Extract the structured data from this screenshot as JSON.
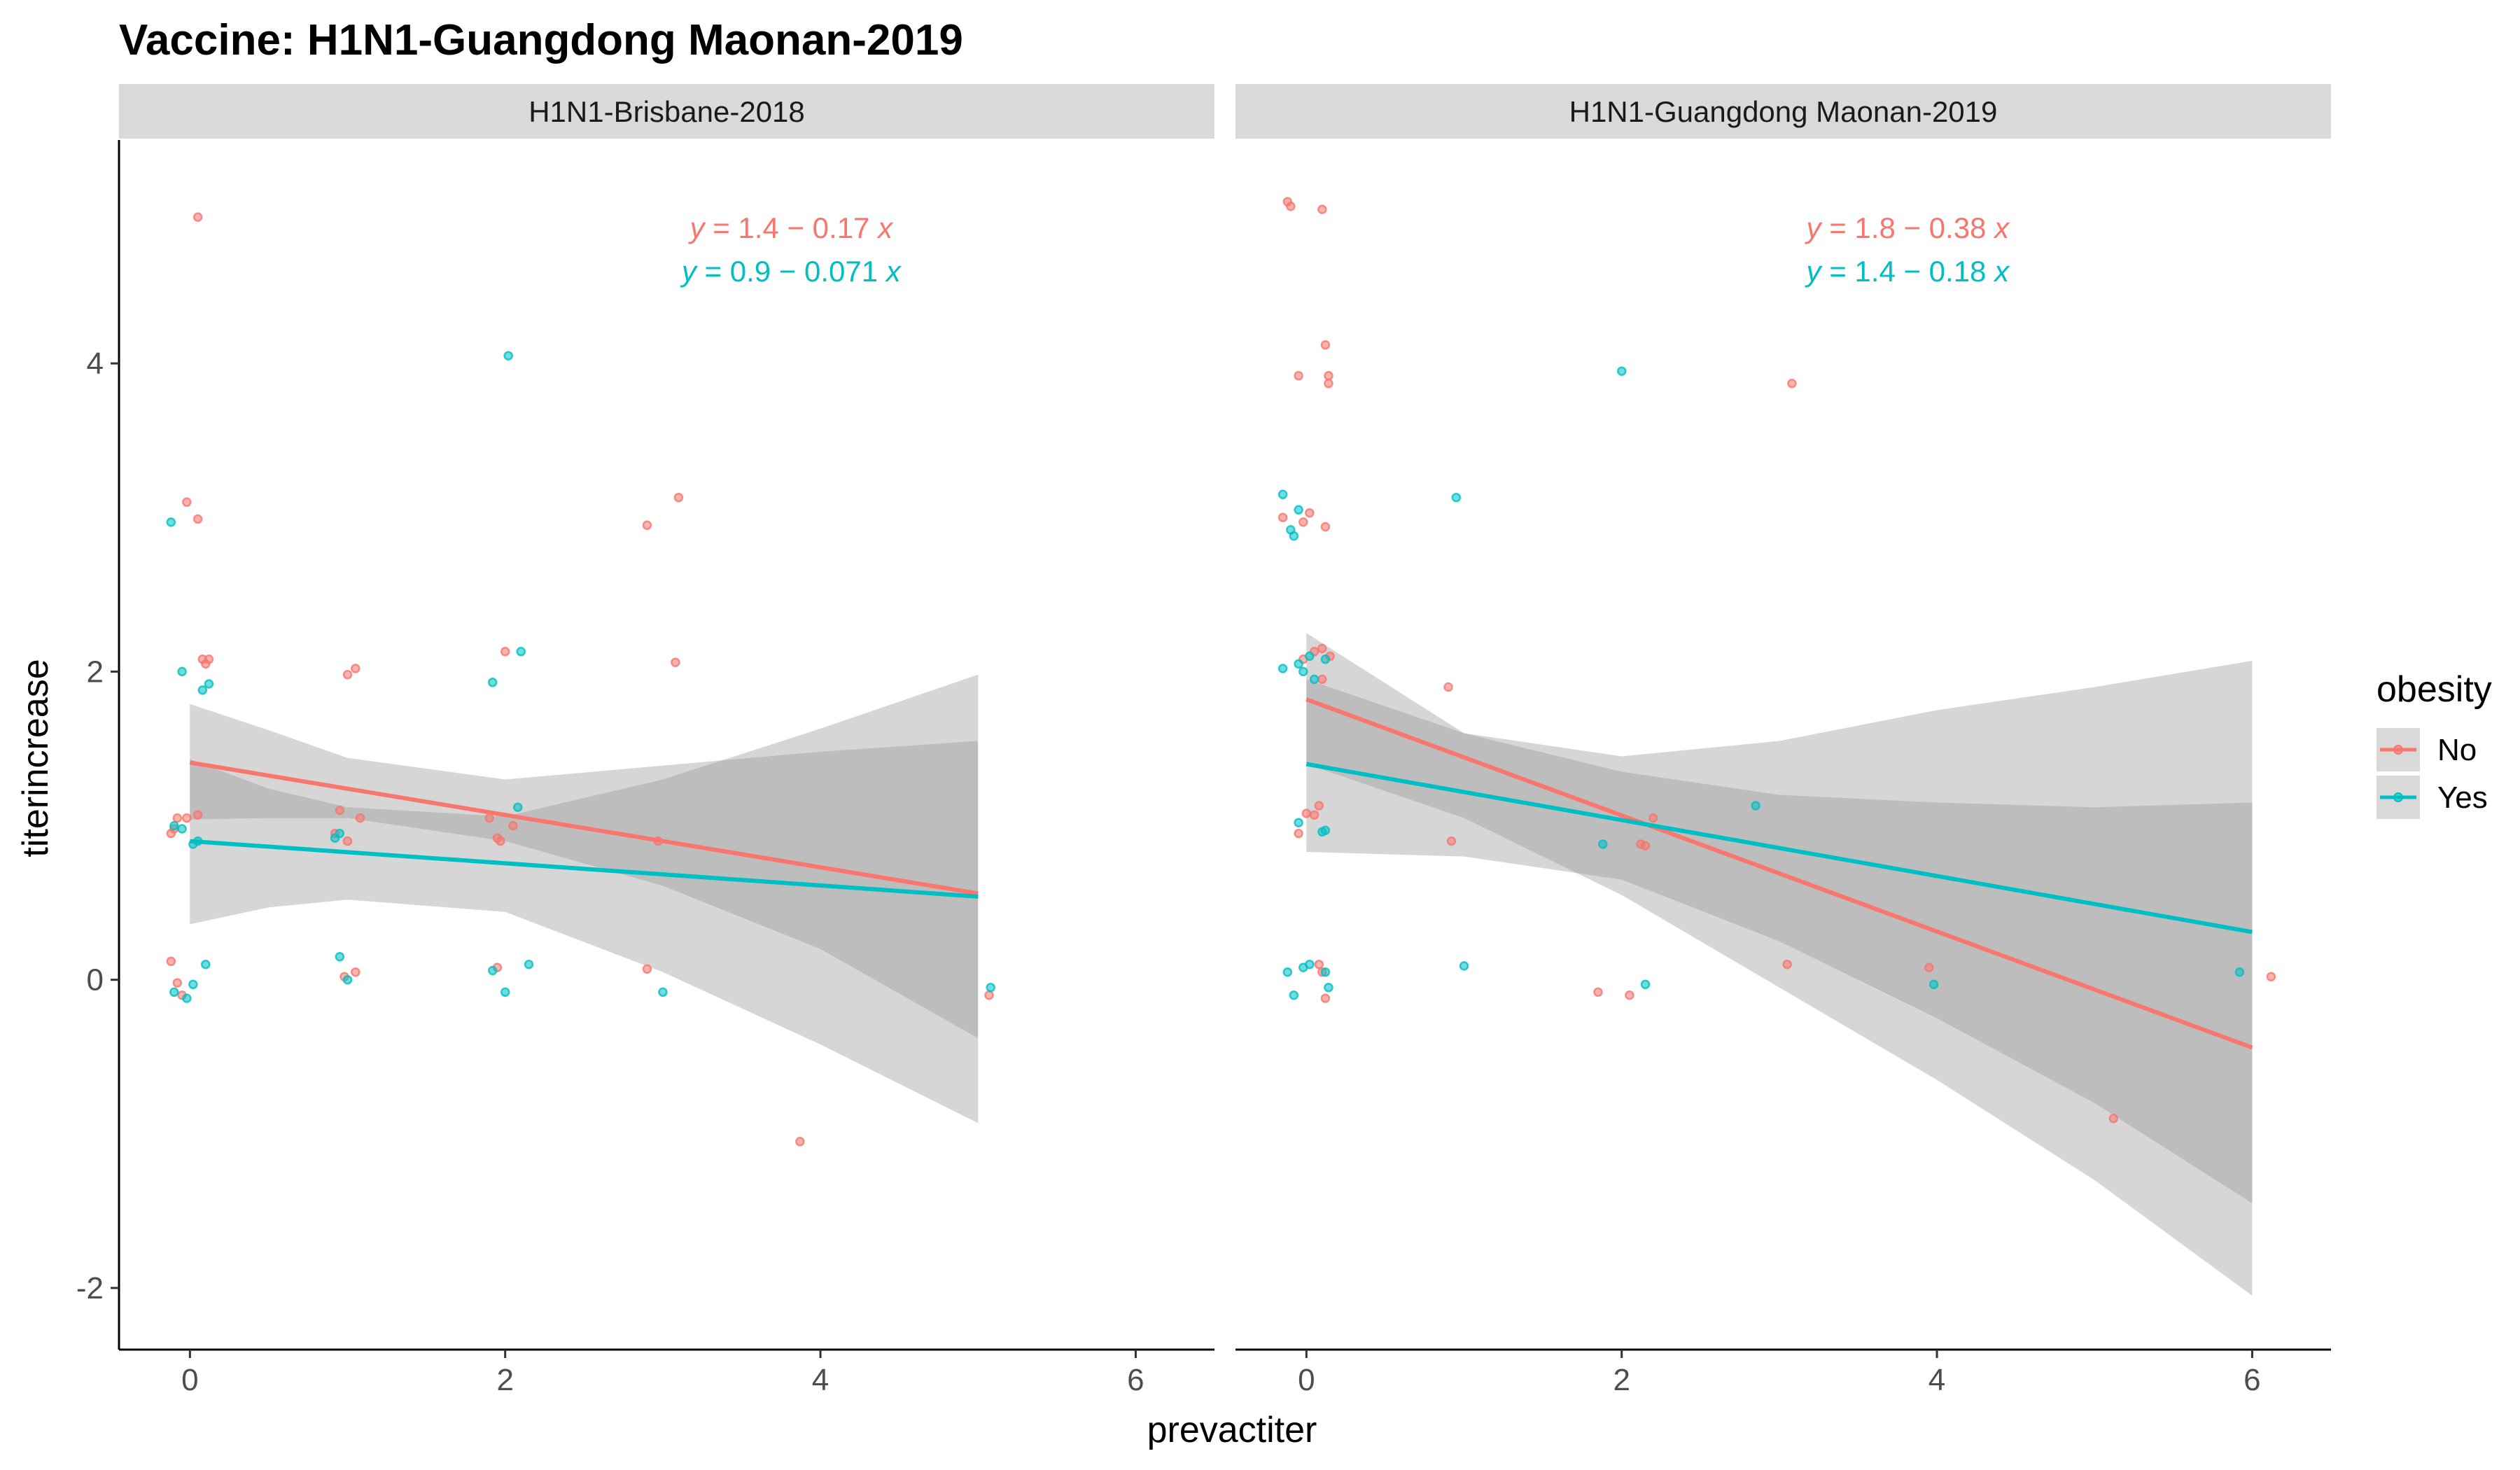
{
  "chart_data": {
    "type": "scatter",
    "title": "Vaccine: H1N1-Guangdong Maonan-2019",
    "xlabel": "prevactiter",
    "ylabel": "titerincrease",
    "xlim": [
      -0.45,
      6.5
    ],
    "ylim": [
      -2.4,
      5.45
    ],
    "x_ticks": [
      0,
      2,
      4,
      6
    ],
    "y_ticks": [
      -2,
      0,
      2,
      4
    ],
    "grid": false,
    "legend": {
      "title": "obesity",
      "placement": "right",
      "entries": [
        {
          "label": "No",
          "color": "#F8766D"
        },
        {
          "label": "Yes",
          "color": "#00BFC4"
        }
      ]
    },
    "panels": [
      {
        "strip": "H1N1-Brisbane-2018",
        "equations": [
          {
            "series": "No",
            "lhs": "y",
            "rhs": " = 1.4 − 0.17 ",
            "var": "x"
          },
          {
            "series": "Yes",
            "lhs": "y",
            "rhs": " = 0.9 − 0.071 ",
            "var": "x"
          }
        ],
        "fits": [
          {
            "series": "No",
            "x": [
              0,
              5
            ],
            "y": [
              1.41,
              0.56
            ],
            "ci": {
              "x": [
                0,
                0.5,
                1,
                2,
                3,
                4,
                5
              ],
              "lo": [
                1.04,
                1.05,
                1.05,
                0.9,
                0.61,
                0.2,
                -0.38
              ],
              "hi": [
                1.79,
                1.62,
                1.44,
                1.3,
                1.39,
                1.48,
                1.55
              ]
            }
          },
          {
            "series": "Yes",
            "x": [
              0,
              5
            ],
            "y": [
              0.9,
              0.54
            ],
            "ci": {
              "x": [
                0,
                0.5,
                1,
                2,
                3,
                4,
                5
              ],
              "lo": [
                0.36,
                0.47,
                0.52,
                0.44,
                0.05,
                -0.42,
                -0.93
              ],
              "hi": [
                1.43,
                1.24,
                1.12,
                1.06,
                1.3,
                1.63,
                1.98
              ]
            }
          }
        ],
        "points": [
          {
            "series": "No",
            "x": [
              0.05,
              -0.02,
              0.05,
              0.08,
              0.1,
              0.12,
              -0.1,
              -0.08,
              -0.12,
              0.05,
              -0.02,
              -0.12,
              -0.08,
              -0.05,
              1.0,
              1.05,
              0.95,
              1.08,
              0.92,
              1.0,
              1.05,
              0.98,
              1.95,
              2.0,
              1.9,
              1.97,
              2.05,
              1.95,
              2.9,
              3.1,
              3.08,
              2.97,
              2.9,
              3.87,
              5.07
            ],
            "y": [
              4.95,
              3.1,
              2.99,
              2.08,
              2.05,
              2.08,
              0.98,
              1.05,
              0.95,
              1.07,
              1.05,
              0.12,
              -0.02,
              -0.1,
              1.98,
              2.02,
              1.1,
              1.05,
              0.95,
              0.9,
              0.05,
              0.02,
              0.92,
              2.13,
              1.05,
              0.9,
              1.0,
              0.08,
              2.95,
              3.13,
              2.06,
              0.9,
              0.07,
              -1.05,
              -0.1
            ]
          },
          {
            "series": "Yes",
            "x": [
              -0.12,
              -0.05,
              0.08,
              0.12,
              -0.1,
              -0.05,
              0.02,
              0.05,
              -0.1,
              -0.02,
              0.02,
              0.1,
              0.95,
              0.92,
              0.95,
              1.0,
              2.02,
              1.92,
              2.1,
              2.08,
              1.92,
              2.0,
              2.15,
              3.0,
              5.08
            ],
            "y": [
              2.97,
              2.0,
              1.88,
              1.92,
              1.0,
              0.98,
              0.88,
              0.9,
              -0.08,
              -0.12,
              -0.03,
              0.1,
              0.95,
              0.92,
              0.15,
              0.0,
              4.05,
              1.93,
              2.13,
              1.12,
              0.06,
              -0.08,
              0.1,
              -0.08,
              -0.05
            ]
          }
        ]
      },
      {
        "strip": "H1N1-Guangdong Maonan-2019",
        "equations": [
          {
            "series": "No",
            "lhs": "y",
            "rhs": " = 1.8 − 0.38 ",
            "var": "x"
          },
          {
            "series": "Yes",
            "lhs": "y",
            "rhs": " = 1.4 − 0.18 ",
            "var": "x"
          }
        ],
        "fits": [
          {
            "series": "No",
            "x": [
              0,
              6
            ],
            "y": [
              1.82,
              -0.44
            ],
            "ci": {
              "x": [
                0,
                1,
                2,
                3,
                4,
                5,
                6
              ],
              "lo": [
                1.4,
                1.05,
                0.55,
                -0.05,
                -0.65,
                -1.3,
                -2.05
              ],
              "hi": [
                2.25,
                1.6,
                1.35,
                1.2,
                1.15,
                1.12,
                1.15
              ]
            }
          },
          {
            "series": "Yes",
            "x": [
              0,
              6
            ],
            "y": [
              1.4,
              0.31
            ],
            "ci": {
              "x": [
                0,
                1,
                2,
                3,
                4,
                5,
                6
              ],
              "lo": [
                0.83,
                0.8,
                0.65,
                0.25,
                -0.25,
                -0.8,
                -1.45
              ],
              "hi": [
                1.95,
                1.6,
                1.45,
                1.55,
                1.75,
                1.9,
                2.07
              ]
            }
          }
        ],
        "points": [
          {
            "series": "No",
            "x": [
              -0.12,
              -0.1,
              0.1,
              0.12,
              0.14,
              0.14,
              -0.05,
              -0.02,
              -0.15,
              0.12,
              0.02,
              0.1,
              0.05,
              0.15,
              -0.02,
              0.1,
              0.08,
              0.05,
              0.0,
              -0.05,
              0.08,
              0.1,
              0.12,
              0.9,
              0.92,
              1.85,
              2.05,
              2.15,
              2.12,
              2.2,
              3.08,
              3.05,
              3.95,
              5.12,
              6.12
            ],
            "y": [
              5.05,
              5.02,
              5.0,
              4.12,
              3.92,
              3.87,
              3.92,
              2.97,
              3.0,
              2.94,
              3.03,
              2.15,
              2.13,
              2.1,
              2.08,
              1.95,
              1.13,
              1.07,
              1.08,
              0.95,
              0.1,
              0.05,
              -0.12,
              1.9,
              0.9,
              -0.08,
              -0.1,
              0.87,
              0.88,
              1.05,
              3.87,
              0.1,
              0.08,
              -0.9,
              0.02
            ]
          },
          {
            "series": "Yes",
            "x": [
              -0.15,
              -0.05,
              -0.1,
              -0.08,
              -0.05,
              -0.02,
              -0.15,
              0.02,
              0.12,
              0.05,
              -0.05,
              0.1,
              0.12,
              -0.12,
              -0.08,
              -0.02,
              0.02,
              0.12,
              0.14,
              0.95,
              1.0,
              2.0,
              1.88,
              2.15,
              2.85,
              3.98,
              5.92
            ],
            "y": [
              3.15,
              3.05,
              2.92,
              2.88,
              2.05,
              2.0,
              2.02,
              2.1,
              2.08,
              1.95,
              1.02,
              0.96,
              0.97,
              0.05,
              -0.1,
              0.08,
              0.1,
              0.05,
              -0.05,
              3.13,
              0.09,
              3.95,
              0.88,
              -0.03,
              1.13,
              -0.03,
              0.05
            ]
          }
        ]
      }
    ]
  }
}
